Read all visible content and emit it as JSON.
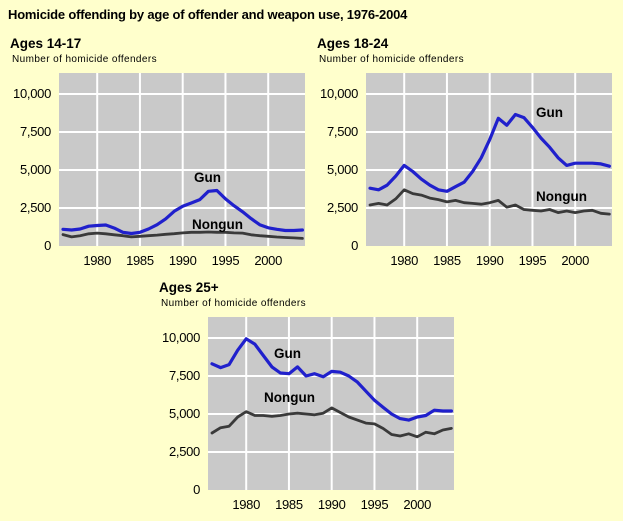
{
  "page": {
    "title": "Homicide offending by age of offender and weapon use, 1976-2004",
    "background": "#FFFFCC"
  },
  "colors": {
    "gun_line": "#2020CC",
    "nongun_line": "#3A3A3A",
    "plot_background": "#C9C9C9",
    "gridline": "#FFFFFF",
    "text": "#000000"
  },
  "axis": {
    "y_tick_labels": [
      "10,000",
      "7,500",
      "5,000",
      "2,500",
      "0"
    ],
    "y_tick_values": [
      10000,
      7500,
      5000,
      2500,
      0
    ],
    "x_tick_labels": [
      "1980",
      "1985",
      "1990",
      "1995",
      "2000"
    ],
    "x_tick_values": [
      1980,
      1985,
      1990,
      1995,
      2000
    ],
    "x_range": [
      1976,
      2004
    ],
    "grid": true,
    "legend_position": "inline-labels"
  },
  "chart_data": [
    {
      "type": "line",
      "title": "Ages 14-17",
      "subtitle": "Number of homicide offenders",
      "xlabel": "",
      "ylabel": "Number of homicide offenders",
      "ylim": [
        0,
        11400
      ],
      "x": [
        1976,
        1977,
        1978,
        1979,
        1980,
        1981,
        1982,
        1983,
        1984,
        1985,
        1986,
        1987,
        1988,
        1989,
        1990,
        1991,
        1992,
        1993,
        1994,
        1995,
        1996,
        1997,
        1998,
        1999,
        2000,
        2001,
        2002,
        2003,
        2004
      ],
      "series": [
        {
          "name": "Gun",
          "values": [
            1100,
            1050,
            1120,
            1300,
            1350,
            1380,
            1180,
            900,
            820,
            900,
            1120,
            1400,
            1780,
            2280,
            2610,
            2830,
            3050,
            3600,
            3650,
            3100,
            2650,
            2250,
            1800,
            1400,
            1200,
            1100,
            1020,
            1020,
            1050
          ]
        },
        {
          "name": "Nongun",
          "values": [
            750,
            600,
            680,
            800,
            850,
            800,
            740,
            680,
            600,
            640,
            680,
            720,
            770,
            810,
            860,
            900,
            900,
            920,
            900,
            900,
            860,
            850,
            740,
            680,
            640,
            590,
            560,
            530,
            500
          ]
        }
      ]
    },
    {
      "type": "line",
      "title": "Ages 18-24",
      "subtitle": "Number of homicide offenders",
      "xlabel": "",
      "ylabel": "Number of homicide offenders",
      "ylim": [
        0,
        11400
      ],
      "x": [
        1976,
        1977,
        1978,
        1979,
        1980,
        1981,
        1982,
        1983,
        1984,
        1985,
        1986,
        1987,
        1988,
        1989,
        1990,
        1991,
        1992,
        1993,
        1994,
        1995,
        1996,
        1997,
        1998,
        1999,
        2000,
        2001,
        2002,
        2003,
        2004
      ],
      "series": [
        {
          "name": "Gun",
          "values": [
            3800,
            3700,
            4000,
            4600,
            5300,
            4900,
            4400,
            4000,
            3700,
            3600,
            3900,
            4200,
            4900,
            5800,
            7000,
            8400,
            7950,
            8650,
            8450,
            7800,
            7100,
            6500,
            5800,
            5300,
            5450,
            5450,
            5450,
            5400,
            5250
          ]
        },
        {
          "name": "Nongun",
          "values": [
            2700,
            2800,
            2700,
            3100,
            3700,
            3450,
            3350,
            3150,
            3050,
            2900,
            3000,
            2850,
            2800,
            2750,
            2850,
            3000,
            2550,
            2700,
            2400,
            2350,
            2300,
            2400,
            2200,
            2300,
            2200,
            2300,
            2350,
            2150,
            2100
          ]
        }
      ]
    },
    {
      "type": "line",
      "title": "Ages 25+",
      "subtitle": "Number of homicide offenders",
      "xlabel": "",
      "ylabel": "Number of homicide offenders",
      "ylim": [
        0,
        11400
      ],
      "x": [
        1976,
        1977,
        1978,
        1979,
        1980,
        1981,
        1982,
        1983,
        1984,
        1985,
        1986,
        1987,
        1988,
        1989,
        1990,
        1991,
        1992,
        1993,
        1994,
        1995,
        1996,
        1997,
        1998,
        1999,
        2000,
        2001,
        2002,
        2003,
        2004
      ],
      "series": [
        {
          "name": "Gun",
          "values": [
            8300,
            8050,
            8250,
            9200,
            9950,
            9600,
            8850,
            8100,
            7700,
            7650,
            8100,
            7500,
            7650,
            7450,
            7800,
            7750,
            7500,
            7100,
            6500,
            5900,
            5450,
            5000,
            4700,
            4600,
            4800,
            4900,
            5250,
            5200,
            5200
          ]
        },
        {
          "name": "Nongun",
          "values": [
            3750,
            4100,
            4200,
            4800,
            5150,
            4900,
            4900,
            4850,
            4900,
            5000,
            5050,
            5000,
            4950,
            5050,
            5400,
            5100,
            4800,
            4600,
            4400,
            4350,
            4050,
            3650,
            3550,
            3700,
            3500,
            3800,
            3700,
            3950,
            4050
          ]
        }
      ]
    }
  ]
}
